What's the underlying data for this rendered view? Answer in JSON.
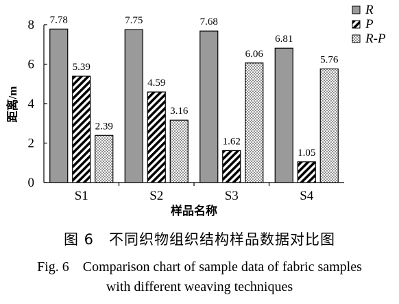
{
  "chart_data": {
    "type": "bar",
    "categories": [
      "S1",
      "S2",
      "S3",
      "S4"
    ],
    "series": [
      {
        "name": "R",
        "values": [
          7.78,
          7.75,
          7.68,
          6.81
        ],
        "pattern": "solid-gray",
        "color": "#9a9a9a"
      },
      {
        "name": "P",
        "values": [
          5.39,
          4.59,
          1.62,
          1.05
        ],
        "pattern": "diagonal-hatch",
        "color": "#000000"
      },
      {
        "name": "R-P",
        "values": [
          2.39,
          3.16,
          6.06,
          5.76
        ],
        "pattern": "dotted",
        "color": "#000000"
      }
    ],
    "data_labels": {
      "R": [
        "7.78",
        "7.75",
        "7.68",
        "6.81"
      ],
      "P": [
        "5.39",
        "4.59",
        "1.62",
        "1.05"
      ],
      "R-P": [
        "2.39",
        "3.16",
        "6.06",
        "5.76"
      ]
    },
    "title": "",
    "xlabel": "样品名称",
    "ylabel": "距离/m",
    "ylim": [
      0,
      8
    ],
    "yticks": [
      "0",
      "2",
      "4",
      "6",
      "8"
    ],
    "grid": false,
    "legend": "top-right"
  },
  "captions": {
    "cn": "图 6　不同织物组织结构样品数据对比图",
    "en_line1": "Fig. 6　Comparison chart of sample data of fabric samples",
    "en_line2": "with different weaving techniques"
  }
}
